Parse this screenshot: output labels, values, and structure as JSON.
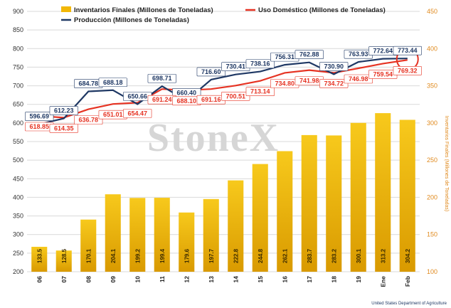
{
  "chart_data": {
    "type": "bar",
    "categories": [
      "06",
      "07",
      "08",
      "09",
      "10",
      "11",
      "12",
      "13",
      "14",
      "15",
      "16",
      "17",
      "18",
      "19",
      "Ene",
      "Feb"
    ],
    "series": [
      {
        "name": "Inventarios Finales (Millones de Toneladas)",
        "type": "bar",
        "axis": "right",
        "color": "#f2b707",
        "values": [
          133.5,
          128.5,
          170.1,
          204.1,
          199.2,
          199.4,
          179.6,
          197.7,
          222.8,
          244.8,
          262.1,
          283.7,
          283.2,
          300.1,
          313.2,
          304.2
        ]
      },
      {
        "name": "Uso Doméstico (Millones de Toneladas)",
        "type": "line",
        "axis": "left",
        "color": "#e63323",
        "values": [
          618.85,
          614.35,
          636.78,
          651.01,
          654.47,
          691.24,
          688.1,
          691.16,
          700.51,
          713.14,
          734.8,
          741.98,
          734.72,
          746.98,
          759.54,
          769.32
        ]
      },
      {
        "name": "Producción (Millones de Toneladas)",
        "type": "line",
        "axis": "left",
        "color": "#1f3864",
        "values": [
          596.69,
          612.23,
          684.78,
          688.18,
          650.66,
          698.71,
          660.4,
          716.6,
          730.41,
          738.16,
          756.31,
          762.88,
          730.9,
          763.93,
          772.64,
          773.44
        ]
      }
    ],
    "y_left": {
      "ticks": [
        200,
        250,
        300,
        350,
        400,
        450,
        500,
        550,
        600,
        650,
        700,
        750,
        800,
        850,
        900
      ],
      "ylim": [
        200,
        900
      ]
    },
    "y_right": {
      "ticks": [
        100,
        150,
        200,
        250,
        300,
        350,
        400,
        450
      ],
      "ylim": [
        100,
        450
      ],
      "label": "Inventarios Finales (Millones de Toneladas)"
    },
    "grid": true,
    "legend": "top"
  },
  "watermark": "StoneX",
  "source": "United States Department of Agriculture",
  "colors": {
    "bar": "#f2b707",
    "bar_dark": "#d99a00",
    "production": "#1f3864",
    "domestic": "#e63323",
    "right_axis": "#e08a1e",
    "highlight_circle": "#e63323"
  }
}
